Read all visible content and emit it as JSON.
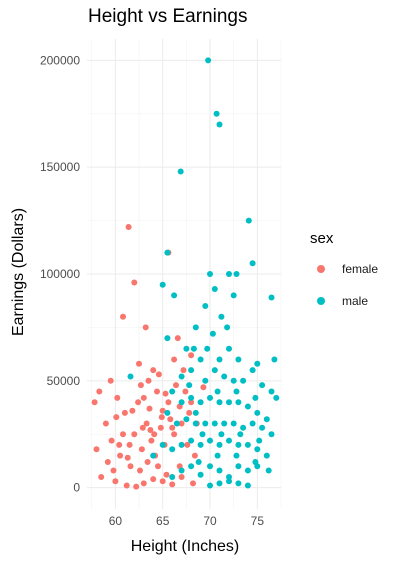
{
  "chart_data": {
    "type": "scatter",
    "title": "Height vs Earnings",
    "xlabel": "Height (Inches)",
    "ylabel": "Earnings (Dollars)",
    "xlim": [
      57,
      77.5
    ],
    "ylim": [
      -10000,
      210000
    ],
    "x_ticks": [
      60,
      65,
      70,
      75
    ],
    "x_tick_labels": [
      "60",
      "65",
      "70",
      "75"
    ],
    "y_ticks": [
      0,
      50000,
      100000,
      150000,
      200000
    ],
    "y_tick_labels": [
      "0",
      "50000",
      "100000",
      "150000",
      "200000"
    ],
    "grid": true,
    "legend": {
      "title": "sex",
      "position": "right",
      "entries": [
        {
          "label": "female",
          "color": "#F8766D"
        },
        {
          "label": "male",
          "color": "#00BFC4"
        }
      ]
    },
    "series": [
      {
        "name": "female",
        "color": "#F8766D",
        "points": [
          [
            61.4,
            122000
          ],
          [
            62.0,
            96000
          ],
          [
            60.8,
            80000
          ],
          [
            63.2,
            75000
          ],
          [
            65.6,
            110000
          ],
          [
            66.2,
            60000
          ],
          [
            64.0,
            55000
          ],
          [
            62.5,
            58000
          ],
          [
            59.5,
            50000
          ],
          [
            57.8,
            40000
          ],
          [
            58.3,
            45000
          ],
          [
            60.2,
            42000
          ],
          [
            61.0,
            35000
          ],
          [
            62.7,
            48000
          ],
          [
            63.5,
            50000
          ],
          [
            64.6,
            53000
          ],
          [
            65.3,
            44000
          ],
          [
            66.6,
            70000
          ],
          [
            67.2,
            55000
          ],
          [
            68.0,
            62000
          ],
          [
            59.0,
            30000
          ],
          [
            58.5,
            5000
          ],
          [
            59.8,
            8000
          ],
          [
            60.5,
            15000
          ],
          [
            61.5,
            20000
          ],
          [
            62.0,
            25000
          ],
          [
            62.8,
            18000
          ],
          [
            63.3,
            30000
          ],
          [
            63.8,
            22000
          ],
          [
            64.2,
            15000
          ],
          [
            64.8,
            28000
          ],
          [
            65.2,
            20000
          ],
          [
            65.8,
            32000
          ],
          [
            66.2,
            25000
          ],
          [
            66.8,
            38000
          ],
          [
            67.4,
            45000
          ],
          [
            68.0,
            40000
          ],
          [
            68.6,
            30000
          ],
          [
            69.3,
            47000
          ],
          [
            60.0,
            3000
          ],
          [
            61.2,
            1000
          ],
          [
            62.2,
            500
          ],
          [
            63.0,
            2000
          ],
          [
            64.0,
            4000
          ],
          [
            65.0,
            3000
          ],
          [
            66.0,
            1500
          ],
          [
            67.0,
            5000
          ],
          [
            68.2,
            2000
          ],
          [
            59.2,
            12000
          ],
          [
            60.8,
            25000
          ],
          [
            61.8,
            36000
          ],
          [
            62.4,
            40000
          ],
          [
            63.0,
            42000
          ],
          [
            63.6,
            37000
          ],
          [
            64.4,
            45000
          ],
          [
            65.0,
            36000
          ],
          [
            65.6,
            40000
          ],
          [
            66.4,
            48000
          ],
          [
            67.8,
            35000
          ],
          [
            64.5,
            10000
          ],
          [
            63.4,
            12000
          ],
          [
            62.6,
            8000
          ],
          [
            61.6,
            10000
          ],
          [
            60.4,
            20000
          ],
          [
            66.8,
            10000
          ],
          [
            67.6,
            20000
          ],
          [
            68.4,
            15000
          ],
          [
            65.4,
            6000
          ],
          [
            64.1,
            25000
          ],
          [
            62.9,
            28000
          ],
          [
            61.3,
            14000
          ],
          [
            59.6,
            22000
          ],
          [
            58.0,
            18000
          ],
          [
            60.1,
            33000
          ],
          [
            66.0,
            28000
          ],
          [
            67.0,
            30000
          ],
          [
            64.9,
            33000
          ],
          [
            63.7,
            27000
          ]
        ]
      },
      {
        "name": "male",
        "color": "#00BFC4",
        "points": [
          [
            69.8,
            200000
          ],
          [
            70.7,
            175000
          ],
          [
            71.0,
            170000
          ],
          [
            66.9,
            148000
          ],
          [
            74.1,
            125000
          ],
          [
            65.5,
            110000
          ],
          [
            74.5,
            105000
          ],
          [
            70.0,
            100000
          ],
          [
            72.0,
            100000
          ],
          [
            72.8,
            100000
          ],
          [
            65.0,
            95000
          ],
          [
            70.5,
            93000
          ],
          [
            72.5,
            90000
          ],
          [
            76.5,
            89000
          ],
          [
            66.2,
            90000
          ],
          [
            69.5,
            85000
          ],
          [
            71.2,
            80000
          ],
          [
            71.8,
            75000
          ],
          [
            65.5,
            70000
          ],
          [
            68.5,
            75000
          ],
          [
            70.3,
            72000
          ],
          [
            67.5,
            65000
          ],
          [
            68.3,
            65000
          ],
          [
            69.0,
            60000
          ],
          [
            69.7,
            65000
          ],
          [
            71.0,
            60000
          ],
          [
            72.0,
            65000
          ],
          [
            73.0,
            60000
          ],
          [
            75.0,
            58000
          ],
          [
            76.8,
            60000
          ],
          [
            61.6,
            52000
          ],
          [
            67.0,
            52000
          ],
          [
            68.0,
            55000
          ],
          [
            69.5,
            50000
          ],
          [
            70.5,
            55000
          ],
          [
            71.5,
            52000
          ],
          [
            72.5,
            50000
          ],
          [
            73.5,
            50000
          ],
          [
            74.5,
            55000
          ],
          [
            75.5,
            48000
          ],
          [
            76.5,
            45000
          ],
          [
            77.0,
            42000
          ],
          [
            66.0,
            45000
          ],
          [
            67.0,
            40000
          ],
          [
            68.0,
            42000
          ],
          [
            69.0,
            40000
          ],
          [
            70.0,
            42000
          ],
          [
            71.0,
            40000
          ],
          [
            72.0,
            40000
          ],
          [
            73.0,
            40000
          ],
          [
            74.0,
            38000
          ],
          [
            75.0,
            35000
          ],
          [
            76.0,
            32000
          ],
          [
            65.5,
            35000
          ],
          [
            66.5,
            30000
          ],
          [
            67.5,
            32000
          ],
          [
            68.5,
            30000
          ],
          [
            69.5,
            30000
          ],
          [
            70.5,
            30000
          ],
          [
            71.5,
            30000
          ],
          [
            72.5,
            30000
          ],
          [
            73.5,
            28000
          ],
          [
            74.5,
            30000
          ],
          [
            75.5,
            28000
          ],
          [
            76.5,
            25000
          ],
          [
            64.0,
            15000
          ],
          [
            65.0,
            20000
          ],
          [
            66.0,
            18000
          ],
          [
            67.0,
            20000
          ],
          [
            68.0,
            22000
          ],
          [
            69.0,
            20000
          ],
          [
            70.0,
            22000
          ],
          [
            71.0,
            20000
          ],
          [
            72.0,
            22000
          ],
          [
            73.0,
            20000
          ],
          [
            74.0,
            20000
          ],
          [
            75.0,
            18000
          ],
          [
            76.0,
            15000
          ],
          [
            66.0,
            5000
          ],
          [
            67.0,
            8000
          ],
          [
            68.0,
            10000
          ],
          [
            69.0,
            6000
          ],
          [
            70.0,
            10000
          ],
          [
            71.0,
            8000
          ],
          [
            72.0,
            5000
          ],
          [
            73.0,
            10000
          ],
          [
            74.0,
            8000
          ],
          [
            75.0,
            10000
          ],
          [
            70.0,
            1000
          ],
          [
            71.0,
            2000
          ],
          [
            72.0,
            3000
          ],
          [
            73.0,
            2000
          ],
          [
            74.0,
            1000
          ],
          [
            68.5,
            35000
          ],
          [
            70.8,
            45000
          ],
          [
            72.8,
            45000
          ],
          [
            74.8,
            42000
          ],
          [
            67.8,
            48000
          ],
          [
            69.2,
            25000
          ],
          [
            71.2,
            25000
          ],
          [
            73.2,
            25000
          ],
          [
            75.2,
            22000
          ],
          [
            68.8,
            12000
          ],
          [
            70.8,
            15000
          ],
          [
            72.8,
            15000
          ],
          [
            74.8,
            12000
          ],
          [
            76.2,
            8000
          ]
        ]
      }
    ]
  }
}
